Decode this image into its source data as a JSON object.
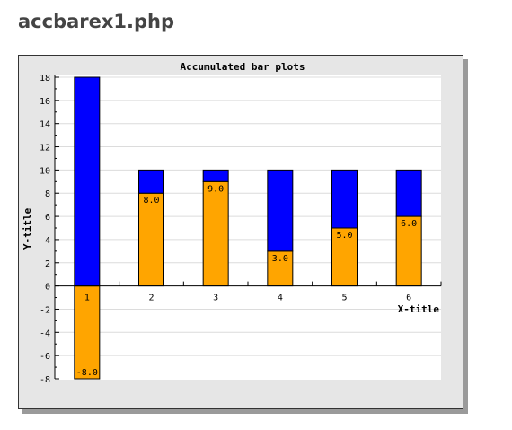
{
  "page": {
    "title": "accbarex1.php"
  },
  "chart_data": {
    "type": "bar",
    "stacked": true,
    "title": "Accumulated bar plots",
    "xlabel": "X-title",
    "ylabel": "Y-title",
    "categories": [
      "1",
      "2",
      "3",
      "4",
      "5",
      "6"
    ],
    "ylim": [
      -8,
      18
    ],
    "yticks": [
      "-8",
      "-6",
      "-4",
      "-2",
      "0",
      "2",
      "4",
      "6",
      "8",
      "10",
      "12",
      "14",
      "16",
      "18"
    ],
    "grid": true,
    "legend": "none",
    "series": [
      {
        "values": [
          -8,
          8,
          9,
          3,
          5,
          6
        ],
        "labels": [
          "-8.0",
          "8.0",
          "9.0",
          "3.0",
          "5.0",
          "6.0"
        ],
        "color": "#ffa500"
      },
      {
        "values": [
          18,
          2,
          1,
          7,
          5,
          4
        ],
        "color": "#0000ff"
      }
    ]
  }
}
